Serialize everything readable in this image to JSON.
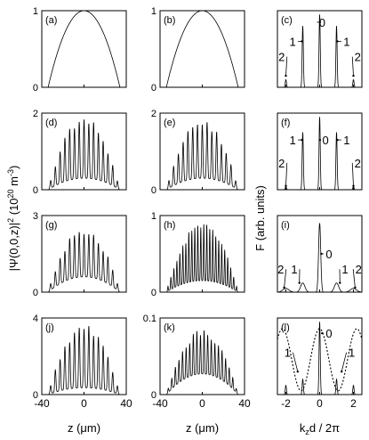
{
  "figure": {
    "ylabel_main": "|Ψ(0,0,z)|",
    "ylabel_sup": "2",
    "ylabel_unit_open": " (10",
    "ylabel_unit_exp1": "20",
    "ylabel_unit_m": " m",
    "ylabel_unit_exp2": "-3",
    "ylabel_unit_close": ")",
    "xlabel_z": "z (μm)",
    "ylabel_right": "F (arb. units)",
    "xlabel_right": "kzd / 2π",
    "xlabel_right_k": "k",
    "xlabel_right_sub": "z",
    "xlabel_right_rest": "d / 2π"
  },
  "chart_data": [
    {
      "id": "a",
      "label": "(a)",
      "type": "line",
      "col": 0,
      "row": 0,
      "xlim": [
        -40,
        40
      ],
      "ylim": [
        0,
        1
      ],
      "yticks": [
        "0",
        "1"
      ],
      "profile": "parabola",
      "amp": 1.0
    },
    {
      "id": "b",
      "label": "(b)",
      "type": "line",
      "col": 1,
      "row": 0,
      "xlim": [
        -40,
        40
      ],
      "ylim": [
        0,
        1
      ],
      "yticks": [
        "0",
        "1"
      ],
      "profile": "parabola",
      "amp": 1.0
    },
    {
      "id": "c",
      "label": "(c)",
      "type": "line",
      "col": 2,
      "row": 0,
      "xlim": [
        -2.5,
        2.5
      ],
      "ylim": [
        0,
        1
      ],
      "peaks": [
        {
          "x": -2,
          "h": 0.1
        },
        {
          "x": -1,
          "h": 0.8
        },
        {
          "x": 0,
          "h": 0.95
        },
        {
          "x": 1,
          "h": 0.8
        },
        {
          "x": 2,
          "h": 0.1
        }
      ],
      "annotations": [
        {
          "text": "0",
          "x": 0.15,
          "y": 0.85,
          "ax": 0.02,
          "ay": 0.85
        },
        {
          "text": "1",
          "x": -1.6,
          "y": 0.6,
          "ax": -1.05,
          "ay": 0.6
        },
        {
          "text": "1",
          "x": 1.6,
          "y": 0.6,
          "ax": 1.05,
          "ay": 0.6
        },
        {
          "text": "2",
          "x": -2.25,
          "y": 0.4,
          "ax": -2.0,
          "ay": 0.15
        },
        {
          "text": "2",
          "x": 2.25,
          "y": 0.4,
          "ax": 2.0,
          "ay": 0.15
        }
      ]
    },
    {
      "id": "d",
      "label": "(d)",
      "type": "line",
      "col": 0,
      "row": 1,
      "xlim": [
        -40,
        40
      ],
      "ylim": [
        0,
        2
      ],
      "yticks": [
        "0",
        "2"
      ],
      "profile": "fringes",
      "amp": 1.9,
      "base": 0.5,
      "nfringe": 15,
      "seed": 1
    },
    {
      "id": "e",
      "label": "(e)",
      "type": "line",
      "col": 1,
      "row": 1,
      "xlim": [
        -40,
        40
      ],
      "ylim": [
        0,
        2
      ],
      "yticks": [
        "0",
        "2"
      ],
      "profile": "fringes",
      "amp": 1.85,
      "base": 0.5,
      "nfringe": 15,
      "seed": 2
    },
    {
      "id": "f",
      "label": "(f)",
      "type": "line",
      "col": 2,
      "row": 1,
      "xlim": [
        -2.5,
        2.5
      ],
      "ylim": [
        0,
        1
      ],
      "peaks": [
        {
          "x": -2,
          "h": 0.04
        },
        {
          "x": -1,
          "h": 0.75
        },
        {
          "x": 0,
          "h": 0.95
        },
        {
          "x": 1,
          "h": 0.75
        },
        {
          "x": 2,
          "h": 0.04
        }
      ],
      "annotations": [
        {
          "text": "0",
          "x": 0.35,
          "y": 0.65,
          "ax": 0.02,
          "ay": 0.65
        },
        {
          "text": "1",
          "x": -1.6,
          "y": 0.65,
          "ax": -1.05,
          "ay": 0.65
        },
        {
          "text": "1",
          "x": 1.6,
          "y": 0.65,
          "ax": 1.05,
          "ay": 0.65
        },
        {
          "text": "2",
          "x": -2.25,
          "y": 0.35,
          "ax": -2.0,
          "ay": 0.05
        },
        {
          "text": "2",
          "x": 2.25,
          "y": 0.35,
          "ax": 2.0,
          "ay": 0.05
        }
      ]
    },
    {
      "id": "g",
      "label": "(g)",
      "type": "line",
      "col": 0,
      "row": 2,
      "xlim": [
        -40,
        40
      ],
      "ylim": [
        0,
        3
      ],
      "yticks": [
        "0",
        "3"
      ],
      "profile": "fringes2",
      "amp": 2.6,
      "base": 0.75,
      "nfringe": 15,
      "seed": 3
    },
    {
      "id": "h",
      "label": "(h)",
      "type": "line",
      "col": 1,
      "row": 2,
      "xlim": [
        -40,
        40
      ],
      "ylim": [
        0,
        1
      ],
      "yticks": [
        "0",
        "1"
      ],
      "profile": "fringes",
      "amp": 0.92,
      "base": 0.25,
      "nfringe": 24,
      "seed": 4
    },
    {
      "id": "i",
      "label": "(i)",
      "type": "line",
      "col": 2,
      "row": 2,
      "xlim": [
        -2.5,
        2.5
      ],
      "ylim": [
        0,
        1
      ],
      "peaks": [
        {
          "x": -2,
          "h": 0.05,
          "w": 0.25
        },
        {
          "x": -1,
          "h": 0.12,
          "w": 0.18
        },
        {
          "x": 0,
          "h": 0.9,
          "w": 0.09
        },
        {
          "x": 1,
          "h": 0.12,
          "w": 0.18
        },
        {
          "x": 2,
          "h": 0.05,
          "w": 0.25
        }
      ],
      "annotations": [
        {
          "text": "0",
          "x": 0.55,
          "y": 0.5,
          "ax": 0.1,
          "ay": 0.5
        },
        {
          "text": "2",
          "x": -2.3,
          "y": 0.3,
          "ax": -2.1,
          "ay": 0.06
        },
        {
          "text": "1",
          "x": -1.5,
          "y": 0.3,
          "ax": -1.2,
          "ay": 0.12
        },
        {
          "text": "1",
          "x": 1.5,
          "y": 0.3,
          "ax": 1.2,
          "ay": 0.12
        },
        {
          "text": "2",
          "x": 2.3,
          "y": 0.3,
          "ax": 2.1,
          "ay": 0.06
        }
      ]
    },
    {
      "id": "j",
      "label": "(j)",
      "type": "line",
      "col": 0,
      "row": 3,
      "xlim": [
        -40,
        40
      ],
      "ylim": [
        0,
        4
      ],
      "yticks": [
        "0",
        "4"
      ],
      "profile": "fringes",
      "amp": 3.7,
      "base": 0.6,
      "nfringe": 15,
      "seed": 5
    },
    {
      "id": "k",
      "label": "(k)",
      "type": "line",
      "col": 1,
      "row": 3,
      "xlim": [
        -40,
        40
      ],
      "ylim": [
        0,
        0.1
      ],
      "yticks": [
        "0",
        "0.1"
      ],
      "profile": "fringes",
      "amp": 0.085,
      "base": 0.045,
      "nfringe": 20,
      "seed": 6
    },
    {
      "id": "l",
      "label": "(l)",
      "type": "line",
      "col": 2,
      "row": 3,
      "xlim": [
        -2.5,
        2.5
      ],
      "ylim": [
        0,
        1
      ],
      "dotted": true,
      "peaks": [
        {
          "x": -2,
          "h": 0.12
        },
        {
          "x": -1,
          "h": 0.2
        },
        {
          "x": 0,
          "h": 0.95
        },
        {
          "x": 1,
          "h": 0.2
        },
        {
          "x": 2,
          "h": 0.12
        }
      ],
      "annotations": [
        {
          "text": "0",
          "x": 0.55,
          "y": 0.8,
          "ax": 0.15,
          "ay": 0.8
        },
        {
          "text": "1",
          "x": -1.9,
          "y": 0.55,
          "ax": -1.3,
          "ay": 0.3
        },
        {
          "text": "1",
          "x": 1.9,
          "y": 0.55,
          "ax": 1.3,
          "ay": 0.3
        }
      ]
    }
  ],
  "xticks_left": [
    "-40",
    "0",
    "40"
  ],
  "xticks_right": [
    "-2",
    "0",
    "2"
  ]
}
